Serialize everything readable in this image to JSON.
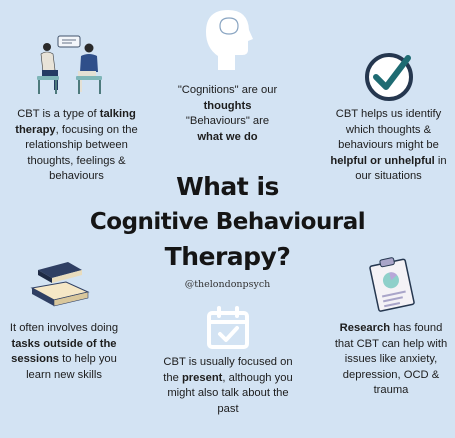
{
  "title": {
    "line1": "What is",
    "line2": "Cognitive Behavioural",
    "line3": "Therapy?"
  },
  "handle": "@thelondonpsych",
  "blurbs": {
    "talking": {
      "p1": "CBT is a type of ",
      "b1": "talking therapy",
      "p2": ", focusing on the relationship between thoughts, feelings & behaviours"
    },
    "cognitions": {
      "p1": "\"Cognitions\" are our",
      "b1": "thoughts",
      "p2": "\"Behaviours\" are",
      "b2": "what we do"
    },
    "identify": {
      "p1": "CBT helps us identify which thoughts & behaviours might be ",
      "b1": "helpful or unhelpful",
      "p2": " in our situations"
    },
    "tasks": {
      "p1": "It often involves doing ",
      "b1": "tasks outside of the sessions",
      "p2": " to help you learn new skills"
    },
    "present": {
      "p1": "CBT is usually focused on the ",
      "b1": "present",
      "p2": ", although you might also talk about the past"
    },
    "research": {
      "b1": "Research",
      "p1": " has found that CBT can help with issues like anxiety, depression, OCD & trauma"
    }
  },
  "icons": {
    "talking": "two-people-talking-icon",
    "head": "head-profile-icon",
    "check": "checkmark-circle-icon",
    "books": "books-icon",
    "calendar": "calendar-check-icon",
    "clipboard": "clipboard-chart-icon"
  },
  "colors": {
    "background": "#d3e3f3",
    "icon_dark": "#25374f",
    "teal": "#1e6b72",
    "text": "#1d1d1d"
  }
}
